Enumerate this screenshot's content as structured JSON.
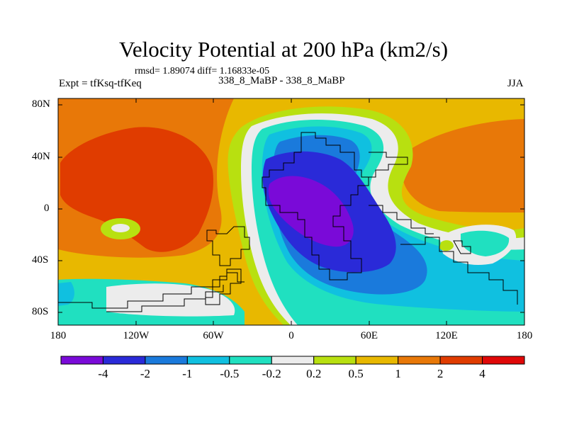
{
  "title": "Velocity Potential at 200 hPa (km2/s)",
  "stats_text": "rmsd= 1.89074 diff= 1.16833e-05",
  "left_label": "Expt = tfKsq-tfKeq",
  "center_label": "338_8_MaBP - 338_8_MaBP",
  "right_label": "JJA",
  "lat_labels": [
    "80N",
    "40N",
    "0",
    "40S",
    "80S"
  ],
  "lon_labels": [
    "180",
    "120W",
    "60W",
    "0",
    "60E",
    "120E",
    "180"
  ],
  "colorbar": {
    "labels": [
      "-4",
      "-2",
      "-1",
      "-0.5",
      "-0.2",
      "0.2",
      "0.5",
      "1",
      "2",
      "4"
    ],
    "colors": [
      "#7a0ad8",
      "#2a2ad8",
      "#1a7adc",
      "#10c0e0",
      "#20e0c0",
      "#ececec",
      "#b8e010",
      "#e8b800",
      "#e87808",
      "#e03c00",
      "#e00808"
    ]
  }
}
